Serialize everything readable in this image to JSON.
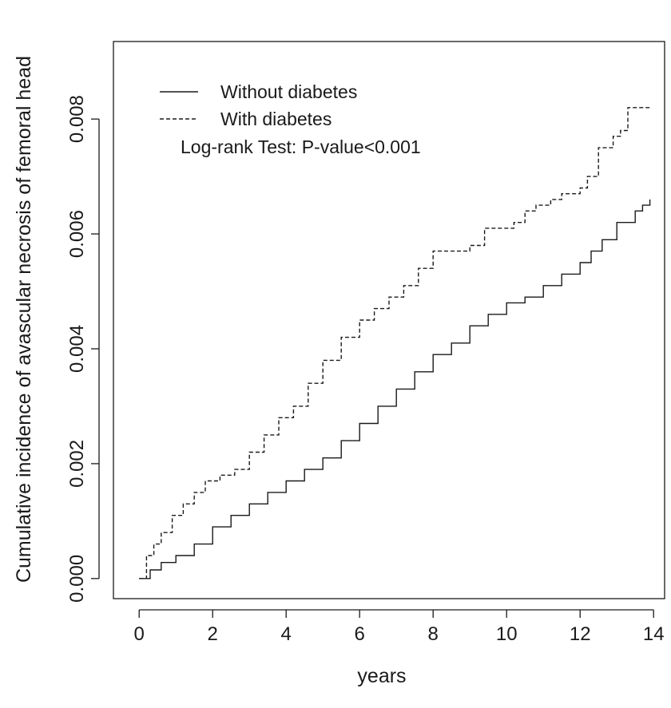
{
  "chart_data": {
    "type": "line",
    "title": "",
    "xlabel": "years",
    "ylabel": "Cumulative incidence of avascular necrosis of femoral head",
    "xlim": [
      -0.7,
      14.3
    ],
    "ylim": [
      -0.00035,
      0.00935
    ],
    "x_ticks": [
      0,
      2,
      4,
      6,
      8,
      10,
      12,
      14
    ],
    "x_tick_labels": [
      "0",
      "2",
      "4",
      "6",
      "8",
      "10",
      "12",
      "14"
    ],
    "y_ticks": [
      0,
      0.002,
      0.004,
      0.006,
      0.008
    ],
    "y_tick_labels": [
      "0.000",
      "0.002",
      "0.004",
      "0.006",
      "0.008"
    ],
    "grid": false,
    "legend_position": "top-left",
    "annotation": "Log-rank Test: P-value<0.001",
    "series": [
      {
        "name": "Without diabetes",
        "line_style": "solid",
        "color": "#1a1a1a",
        "x": [
          0,
          0.3,
          0.6,
          1.0,
          1.5,
          2.0,
          2.5,
          3.0,
          3.5,
          4.0,
          4.5,
          5.0,
          5.5,
          6.0,
          6.5,
          7.0,
          7.5,
          8.0,
          8.5,
          9.0,
          9.5,
          10.0,
          10.5,
          11.0,
          11.5,
          12.0,
          12.3,
          12.6,
          13.0,
          13.5,
          13.7,
          13.9
        ],
        "y": [
          0,
          0.00015,
          0.00028,
          0.0004,
          0.0006,
          0.0009,
          0.0011,
          0.0013,
          0.0015,
          0.0017,
          0.0019,
          0.0021,
          0.0024,
          0.0027,
          0.003,
          0.0033,
          0.0036,
          0.0039,
          0.0041,
          0.0044,
          0.0046,
          0.0048,
          0.0049,
          0.0051,
          0.0053,
          0.0055,
          0.0057,
          0.0059,
          0.0062,
          0.0064,
          0.0065,
          0.0066
        ]
      },
      {
        "name": "With diabetes",
        "line_style": "dashed",
        "color": "#1a1a1a",
        "x": [
          0,
          0.2,
          0.4,
          0.6,
          0.9,
          1.2,
          1.5,
          1.8,
          2.2,
          2.6,
          3.0,
          3.4,
          3.8,
          4.2,
          4.6,
          5.0,
          5.5,
          6.0,
          6.4,
          6.8,
          7.2,
          7.6,
          8.0,
          8.5,
          9.0,
          9.4,
          9.8,
          10.2,
          10.5,
          10.8,
          11.2,
          11.5,
          12.0,
          12.2,
          12.5,
          12.9,
          13.1,
          13.3,
          13.9
        ],
        "y": [
          0,
          0.0004,
          0.0006,
          0.0008,
          0.0011,
          0.0013,
          0.0015,
          0.0017,
          0.0018,
          0.0019,
          0.0022,
          0.0025,
          0.0028,
          0.003,
          0.0034,
          0.0038,
          0.0042,
          0.0045,
          0.0047,
          0.0049,
          0.0051,
          0.0054,
          0.0057,
          0.0057,
          0.0058,
          0.0061,
          0.0061,
          0.0062,
          0.0064,
          0.0065,
          0.0066,
          0.0067,
          0.0068,
          0.007,
          0.0075,
          0.0077,
          0.0078,
          0.0082,
          0.0082
        ]
      }
    ]
  }
}
